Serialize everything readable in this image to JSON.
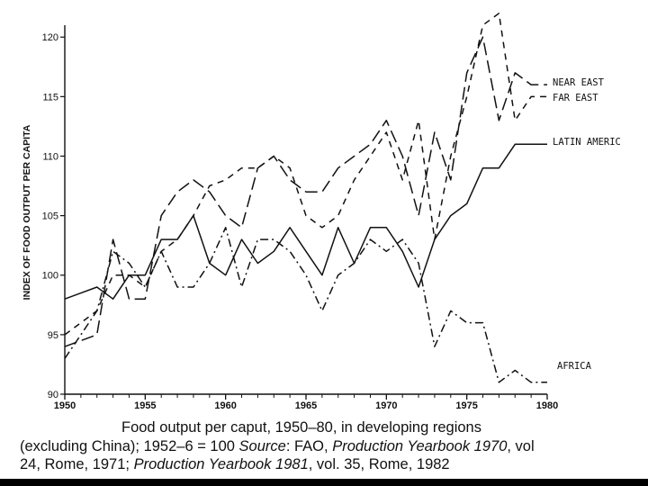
{
  "chart_data": {
    "type": "line",
    "ylabel": "INDEX OF FOOD OUTPUT PER CAPITA",
    "xlabel": "",
    "xlim": [
      1950,
      1980
    ],
    "ylim": [
      90,
      121
    ],
    "xticks": [
      1950,
      1955,
      1960,
      1965,
      1970,
      1975,
      1980
    ],
    "x_tick_labels": [
      "1950",
      "1955",
      "1960",
      "1965",
      "1970",
      "1975",
      "1980"
    ],
    "yticks": [
      90,
      95,
      100,
      105,
      110,
      115,
      120
    ],
    "y_tick_labels": [
      "90",
      "95",
      "100",
      "105",
      "110",
      "115",
      "120"
    ],
    "x": [
      1950,
      1951,
      1952,
      1953,
      1954,
      1955,
      1956,
      1957,
      1958,
      1959,
      1960,
      1961,
      1962,
      1963,
      1964,
      1965,
      1966,
      1967,
      1968,
      1969,
      1970,
      1971,
      1972,
      1973,
      1974,
      1975,
      1976,
      1977,
      1978,
      1979
    ],
    "series": [
      {
        "name": "NEAR EAST",
        "dash": "14,6",
        "values": [
          94,
          94.5,
          95,
          103,
          98,
          98,
          105,
          107,
          108,
          107,
          105,
          104,
          109,
          110,
          108,
          107,
          107,
          109,
          110,
          111,
          113,
          110,
          105,
          112,
          108,
          117,
          120,
          113,
          117,
          116
        ]
      },
      {
        "name": "FAR EAST",
        "dash": "7,6",
        "values": [
          95,
          96,
          97,
          100,
          100,
          99,
          102,
          103,
          105,
          107.5,
          108,
          109,
          109,
          110,
          109,
          105,
          104,
          105,
          108,
          110,
          112,
          108,
          113,
          103,
          110,
          115,
          121,
          122,
          113,
          115
        ]
      },
      {
        "name": "LATIN AMERICA",
        "dash": "",
        "values": [
          98,
          98.5,
          99,
          98,
          100,
          100,
          103,
          103,
          105,
          101,
          100,
          103,
          101,
          102,
          104,
          102,
          100,
          104,
          101,
          104,
          104,
          102,
          99,
          103,
          105,
          106,
          109,
          109,
          111,
          111
        ]
      },
      {
        "name": "AFRICA",
        "dash": "9,4,2,4",
        "values": [
          93,
          95,
          97,
          102,
          101,
          99,
          102,
          99,
          99,
          101,
          104,
          99,
          103,
          103,
          102,
          100,
          97,
          100,
          101,
          103,
          102,
          103,
          101,
          94,
          97,
          96,
          96,
          91,
          92,
          91
        ]
      }
    ],
    "series_labels": {
      "near_east": "NEAR EAST",
      "far_east": "FAR EAST",
      "latin_america": "LATIN AMERIC",
      "africa": "AFRICA"
    },
    "legend": "direct labels at right",
    "grid": false
  },
  "caption": {
    "line1": "Food output per caput, 1950–80, in developing regions",
    "line2_a": "(excluding China); 1952–6 = 100 ",
    "line2_b": "Source",
    "line2_c": ": FAO, ",
    "line2_d": "Production Yearbook 1970",
    "line2_e": ", vol",
    "line3_a": "24, Rome, 1971; ",
    "line3_b": "Production Yearbook 1981",
    "line3_c": ", vol. 35, Rome, 1982"
  }
}
